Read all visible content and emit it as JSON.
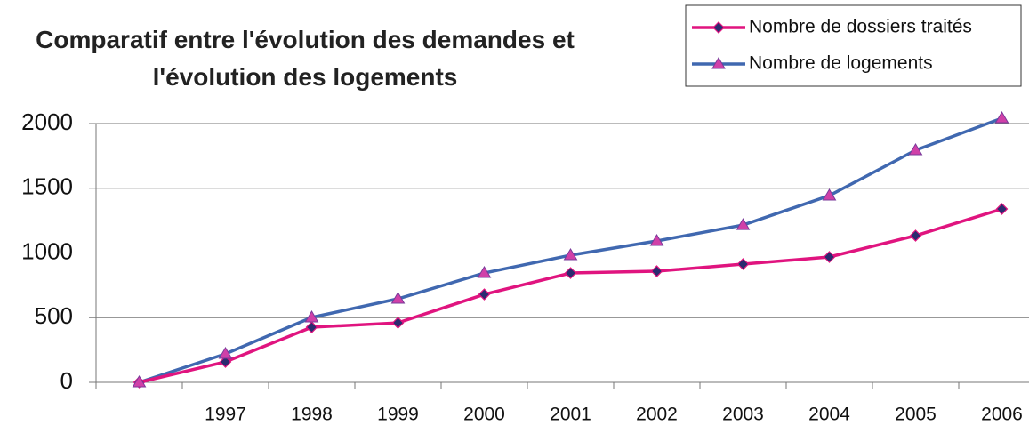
{
  "chart_data": {
    "type": "line",
    "title": "Comparatif entre l'évolution des demandes et l'évolution des logements",
    "categories": [
      null,
      "1997",
      "1998",
      "1999",
      "2000",
      "2001",
      "2002",
      "2003",
      "2004",
      "2005",
      "2006"
    ],
    "series": [
      {
        "name": "Nombre de dossiers traités",
        "color": "#e0147f",
        "marker": "diamond",
        "values": [
          0,
          158,
          426,
          460,
          680,
          845,
          859,
          914,
          969,
          1134,
          1340
        ]
      },
      {
        "name": "Nombre de logements",
        "color": "#4068b0",
        "marker": "triangle",
        "values": [
          0,
          220,
          502,
          646,
          845,
          983,
          1093,
          1216,
          1443,
          1794,
          2041
        ]
      }
    ],
    "ylim": [
      0,
      2000
    ],
    "yticks": [
      0,
      500,
      1000,
      1500,
      2000
    ],
    "grid": true,
    "legend": "top-right"
  }
}
